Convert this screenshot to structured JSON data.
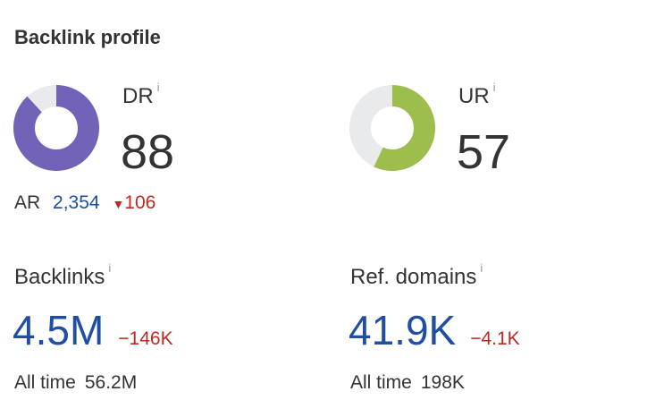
{
  "title": "Backlink profile",
  "dr": {
    "label": "DR",
    "value": "88",
    "fraction": 0.88,
    "color": "#7262b8"
  },
  "ur": {
    "label": "UR",
    "value": "57",
    "fraction": 0.57,
    "color": "#9dbd4d"
  },
  "donut_track_color": "#e9eaec",
  "ar": {
    "label": "AR",
    "value": "2,354",
    "change": "106",
    "change_direction": "down"
  },
  "backlinks": {
    "label": "Backlinks",
    "value": "4.5M",
    "change": "−146K",
    "all_time_label": "All time",
    "all_time_value": "56.2M"
  },
  "ref_domains": {
    "label": "Ref. domains",
    "value": "41.9K",
    "change": "−4.1K",
    "all_time_label": "All time",
    "all_time_value": "198K"
  },
  "info_icon": "i"
}
